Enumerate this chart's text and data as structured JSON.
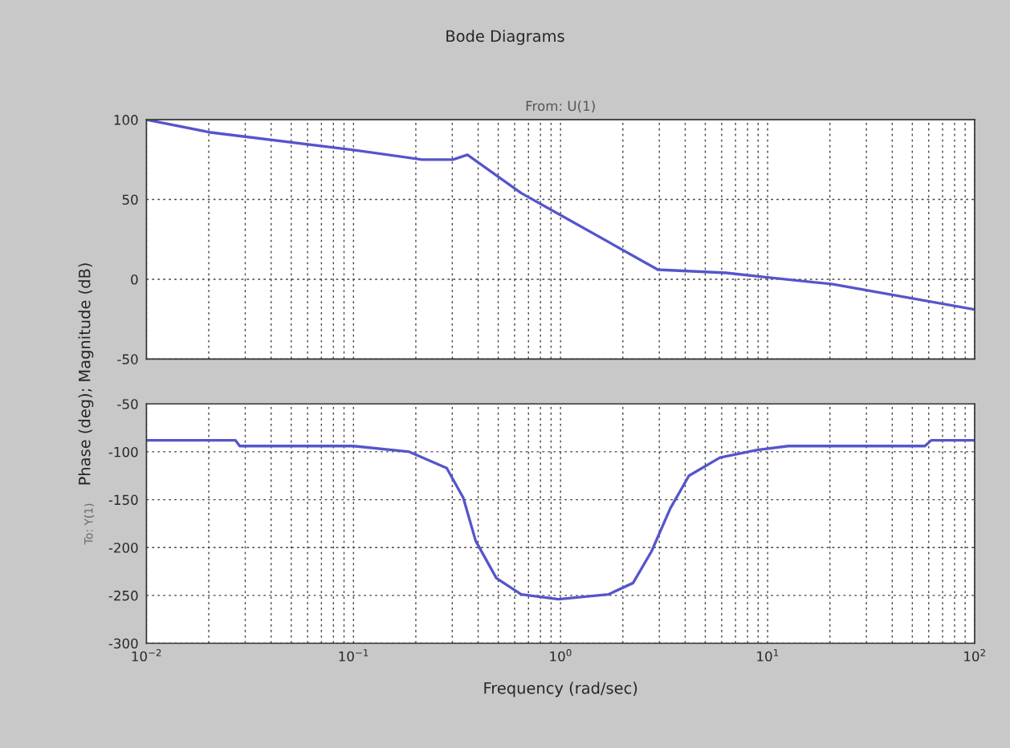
{
  "chart_data": [
    {
      "type": "line",
      "title": "Bode Diagrams",
      "subtitle": "From: U(1)",
      "ylabel": "Phase (deg); Magnitude (dB)",
      "log": "x",
      "grid": true,
      "tick_labels": "y",
      "xlim": [
        0.01,
        100
      ],
      "ylim": [
        -50,
        100
      ],
      "yticks": [
        -50,
        0,
        50,
        100
      ],
      "series": [
        {
          "color": "#5555cc",
          "x": [
            0.01,
            0.0204,
            0.1,
            0.214,
            0.302,
            0.355,
            0.646,
            2.95,
            6.31,
            10.2,
            20.4,
            100
          ],
          "values": [
            100,
            92,
            81,
            75,
            75,
            78,
            54,
            6,
            4,
            1,
            -3,
            -19
          ]
        }
      ]
    },
    {
      "type": "line",
      "ylabel": "To: Y(1)",
      "xlabel": "Frequency (rad/sec)",
      "log": "x",
      "grid": true,
      "xlim": [
        0.01,
        100
      ],
      "ylim": [
        -300,
        -50
      ],
      "xticks": [
        {
          "value": 0.01,
          "label": "10$^{−2}$"
        },
        {
          "value": 0.1,
          "label": "10$^{−1}$"
        },
        {
          "value": 1,
          "label": "10$^{0}$"
        },
        {
          "value": 10,
          "label": "10$^{1}$"
        },
        {
          "value": 100,
          "label": "10$^{2}$"
        }
      ],
      "yticks": [
        -300,
        -250,
        -200,
        -150,
        -100,
        -50
      ],
      "series": [
        {
          "color": "#5555cc",
          "x": [
            0.01,
            0.0269,
            0.0282,
            0.1,
            0.186,
            0.282,
            0.339,
            0.389,
            0.49,
            0.646,
            0.977,
            1.7,
            2.24,
            2.75,
            3.39,
            4.17,
            5.89,
            8.91,
            12.6,
            57.5,
            61.7,
            100
          ],
          "values": [
            -88,
            -88,
            -94,
            -94,
            -100,
            -117,
            -148,
            -193,
            -232,
            -249,
            -254,
            -249,
            -237,
            -204,
            -159,
            -125,
            -106,
            -98,
            -94,
            -94,
            -88,
            -88
          ]
        }
      ]
    }
  ]
}
